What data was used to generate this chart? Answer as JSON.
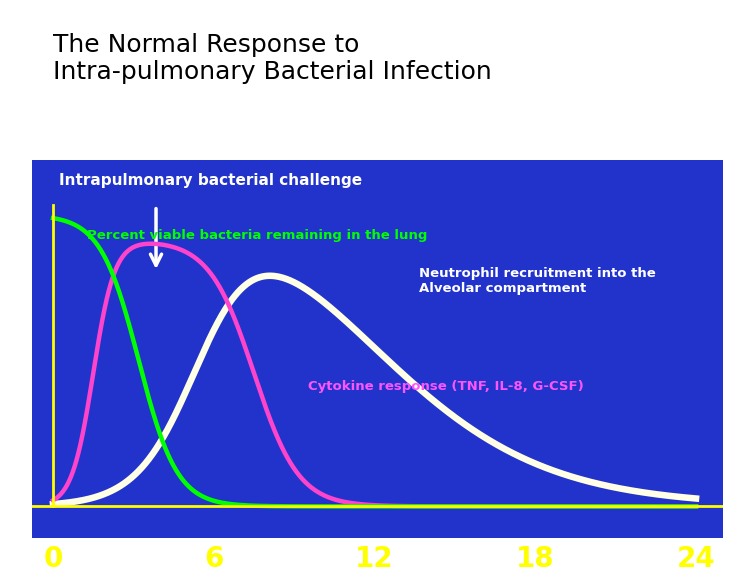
{
  "title_line1": "The Normal Response to",
  "title_line2": "Intra-pulmonary Bacterial Infection",
  "title_color": "#000000",
  "title_fontsize": 18,
  "bg_color": "#2233CC",
  "outer_bg": "#FFFFFF",
  "xlabel_ticks": [
    0,
    6,
    12,
    18,
    24
  ],
  "tick_color": "#FFFF00",
  "tick_fontsize": 20,
  "label_bacteria": "Percent viable bacteria remaining in the lung",
  "label_bacteria_color": "#00FF00",
  "label_neutrophil": "Neutrophil recruitment into the\nAlveolar compartment",
  "label_neutrophil_color": "#FFFFFF",
  "label_cytokine": "Cytokine response (TNF, IL-8, G-CSF)",
  "label_cytokine_color": "#FF55FF",
  "label_challenge": "Intrapulmonary bacterial challenge",
  "label_challenge_color": "#FFFFFF",
  "color_bacteria": "#00FF00",
  "color_cytokine": "#FF44CC",
  "color_neutrophil": "#FFFFE8",
  "line_width": 3.2
}
